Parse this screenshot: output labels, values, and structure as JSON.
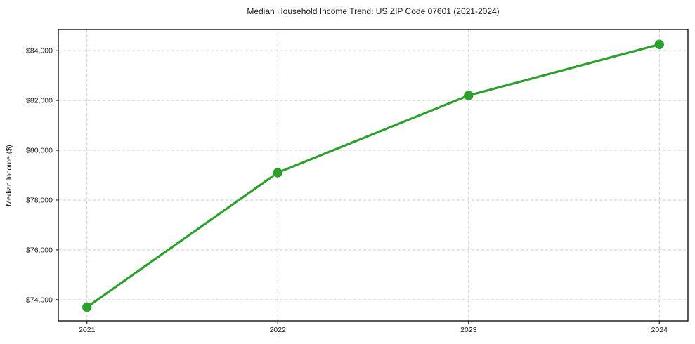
{
  "figure": {
    "background_color": "#ffffff"
  },
  "chart_data": {
    "type": "line",
    "title": "Median Household Income Trend: US ZIP Code 07601 (2021-2024)",
    "xlabel": "",
    "ylabel": "Median Income ($)",
    "x": [
      2021,
      2022,
      2023,
      2024
    ],
    "x_tick_labels": [
      "2021",
      "2022",
      "2023",
      "2024"
    ],
    "series": [
      {
        "name": "Median Household Income",
        "values": [
          73700,
          79100,
          82200,
          84250
        ],
        "color": "#2ca02c",
        "marker": "circle"
      }
    ],
    "y_ticks": [
      74000,
      76000,
      78000,
      80000,
      82000,
      84000
    ],
    "y_tick_labels": [
      "$74,000",
      "$76,000",
      "$78,000",
      "$80,000",
      "$82,000",
      "$84,000"
    ],
    "xlim": [
      2020.85,
      2024.15
    ],
    "ylim": [
      73150,
      84850
    ],
    "grid": true,
    "grid_style": "dashed",
    "grid_color": "#cccccc",
    "legend_position": "none",
    "styles": {
      "line_width": 3.2,
      "marker_radius": 6.7,
      "spine_color": "#000000",
      "tick_label_size": 10.5,
      "title_size": 12,
      "text_color": "#1a1a1a"
    }
  }
}
